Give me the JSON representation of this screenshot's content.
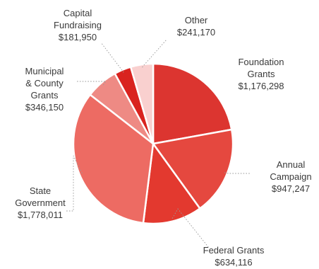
{
  "chart_data": {
    "type": "pie",
    "title": "",
    "slices": [
      {
        "label": "Foundation Grants",
        "value": 1176298,
        "value_text": "$1,176,298",
        "color": "#dc3530"
      },
      {
        "label": "Annual Campaign",
        "value": 947247,
        "value_text": "$947,247",
        "color": "#e5483f"
      },
      {
        "label": "Federal Grants",
        "value": 634116,
        "value_text": "$634,116",
        "color": "#e3392f"
      },
      {
        "label": "State Government",
        "value": 1778011,
        "value_text": "$1,778,011",
        "color": "#ed6b63"
      },
      {
        "label": "Municipal & County Grants",
        "value": 346150,
        "value_text": "$346,150",
        "color": "#ee8a84"
      },
      {
        "label": "Capital Fundraising",
        "value": 181950,
        "value_text": "$181,950",
        "color": "#d9231f"
      },
      {
        "label": "Other",
        "value": 241170,
        "value_text": "$241,170",
        "color": "#f9d0cf"
      }
    ],
    "legend": "none",
    "data_labels": "outside, with dotted leader lines"
  }
}
